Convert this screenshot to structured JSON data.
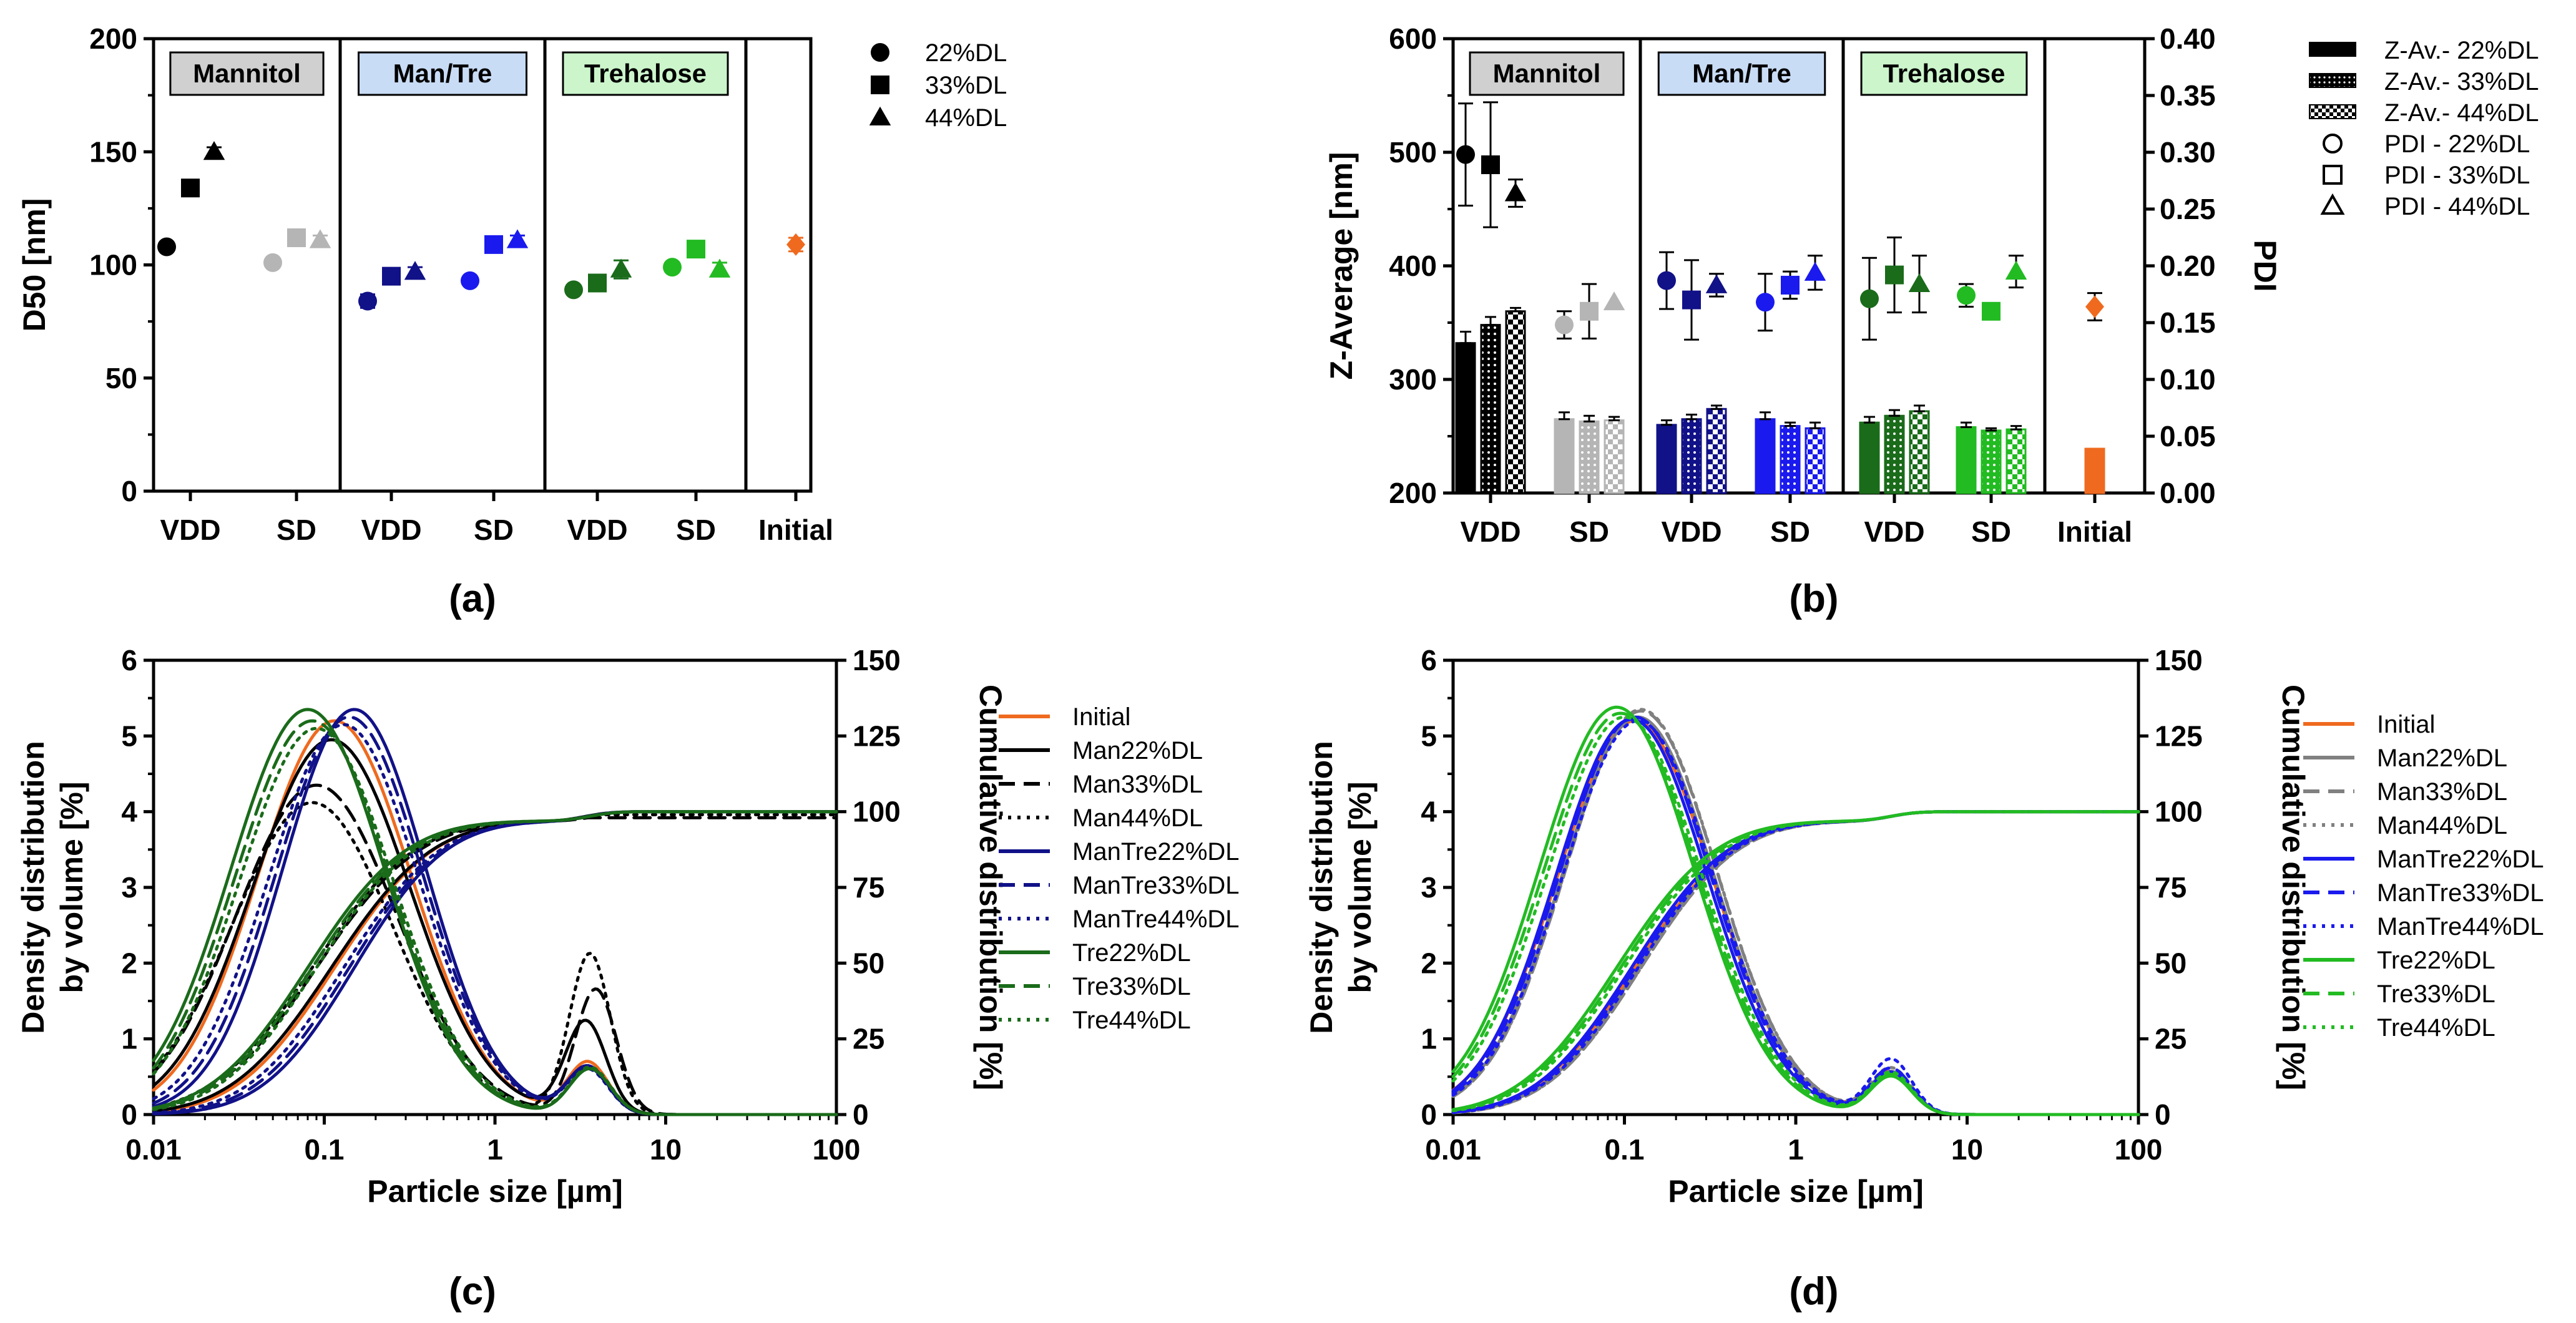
{
  "colors": {
    "black": "#000000",
    "grey": "#b5b5b5",
    "grey_line": "#808080",
    "navy": "#111188",
    "blue": "#1a1aee",
    "dkgreen": "#1a6b1a",
    "ltgreen": "#22bb22",
    "orange": "#ef6a1f",
    "box_mannitol": "#d0d0d0",
    "box_mantre": "#c9dcf5",
    "box_trehalose": "#ccf5cc"
  },
  "panel_labels": [
    "(a)",
    "(b)",
    "(c)",
    "(d)"
  ],
  "chart_data": [
    {
      "id": "a",
      "type": "scatter",
      "panel_label": "(a)",
      "ylabel": "D50 [nm]",
      "ylim": [
        0,
        200
      ],
      "yticks": [
        0,
        50,
        100,
        150,
        200
      ],
      "xtick_labels": [
        "VDD",
        "SD",
        "VDD",
        "SD",
        "VDD",
        "SD",
        "Initial"
      ],
      "groups": [
        {
          "name": "Mannitol",
          "box_color": "#d0d0d0"
        },
        {
          "name": "Man/Tre",
          "box_color": "#c9dcf5"
        },
        {
          "name": "Trehalose",
          "box_color": "#ccf5cc"
        }
      ],
      "legend": [
        "22%DL",
        "33%DL",
        "44%DL"
      ],
      "points": [
        {
          "slot": 0,
          "series": "22%DL",
          "marker": "circle",
          "color": "#000000",
          "value": 108,
          "err": 0
        },
        {
          "slot": 0,
          "series": "33%DL",
          "marker": "square",
          "color": "#000000",
          "value": 134,
          "err": 0
        },
        {
          "slot": 0,
          "series": "44%DL",
          "marker": "triangle",
          "color": "#000000",
          "value": 150,
          "err": 2
        },
        {
          "slot": 1,
          "series": "22%DL",
          "marker": "circle",
          "color": "#b5b5b5",
          "value": 101,
          "err": 2
        },
        {
          "slot": 1,
          "series": "33%DL",
          "marker": "square",
          "color": "#b5b5b5",
          "value": 112,
          "err": 0
        },
        {
          "slot": 1,
          "series": "44%DL",
          "marker": "triangle",
          "color": "#b5b5b5",
          "value": 111,
          "err": 2
        },
        {
          "slot": 2,
          "series": "22%DL",
          "marker": "circle",
          "color": "#111188",
          "value": 84,
          "err": 3
        },
        {
          "slot": 2,
          "series": "33%DL",
          "marker": "square",
          "color": "#111188",
          "value": 95,
          "err": 0
        },
        {
          "slot": 2,
          "series": "44%DL",
          "marker": "triangle",
          "color": "#111188",
          "value": 97,
          "err": 2
        },
        {
          "slot": 3,
          "series": "22%DL",
          "marker": "circle",
          "color": "#1a1aee",
          "value": 93,
          "err": 0
        },
        {
          "slot": 3,
          "series": "33%DL",
          "marker": "square",
          "color": "#1a1aee",
          "value": 109,
          "err": 0
        },
        {
          "slot": 3,
          "series": "44%DL",
          "marker": "triangle",
          "color": "#1a1aee",
          "value": 111,
          "err": 2
        },
        {
          "slot": 4,
          "series": "22%DL",
          "marker": "circle",
          "color": "#1a6b1a",
          "value": 89,
          "err": 0
        },
        {
          "slot": 4,
          "series": "33%DL",
          "marker": "square",
          "color": "#1a6b1a",
          "value": 92,
          "err": 0
        },
        {
          "slot": 4,
          "series": "44%DL",
          "marker": "triangle",
          "color": "#1a6b1a",
          "value": 98,
          "err": 4
        },
        {
          "slot": 5,
          "series": "22%DL",
          "marker": "circle",
          "color": "#22bb22",
          "value": 99,
          "err": 0
        },
        {
          "slot": 5,
          "series": "33%DL",
          "marker": "square",
          "color": "#22bb22",
          "value": 107,
          "err": 0
        },
        {
          "slot": 5,
          "series": "44%DL",
          "marker": "triangle",
          "color": "#22bb22",
          "value": 98,
          "err": 3
        },
        {
          "slot": 6,
          "series": "Initial",
          "marker": "diamond",
          "color": "#ef6a1f",
          "value": 109,
          "err": 3
        }
      ]
    },
    {
      "id": "b",
      "type": "bar",
      "panel_label": "(b)",
      "ylabel": "Z-Average [nm]",
      "ylabel_right": "PDI",
      "ylim": [
        200,
        600
      ],
      "yticks": [
        200,
        300,
        400,
        500,
        600
      ],
      "ylim_right": [
        0,
        0.4
      ],
      "yticks_right": [
        "0.00",
        "0.05",
        "0.10",
        "0.15",
        "0.20",
        "0.25",
        "0.30",
        "0.35",
        "0.40"
      ],
      "xtick_labels": [
        "VDD",
        "SD",
        "VDD",
        "SD",
        "VDD",
        "SD",
        "Initial"
      ],
      "groups": [
        {
          "name": "Mannitol",
          "box_color": "#d0d0d0"
        },
        {
          "name": "Man/Tre",
          "box_color": "#c9dcf5"
        },
        {
          "name": "Trehalose",
          "box_color": "#ccf5cc"
        }
      ],
      "legend": [
        "Z-Av.- 22%DL",
        "Z-Av.- 33%DL",
        "Z-Av.- 44%DL",
        "PDI - 22%DL",
        "PDI - 33%DL",
        "PDI - 44%DL"
      ],
      "slot_colors": [
        "#000000",
        "#b5b5b5",
        "#111188",
        "#1a1aee",
        "#1a6b1a",
        "#22bb22",
        "#ef6a1f"
      ],
      "zavg": [
        [
          332,
          348,
          360
        ],
        [
          265,
          263,
          264
        ],
        [
          260,
          265,
          274
        ],
        [
          265,
          259,
          257
        ],
        [
          262,
          268,
          272
        ],
        [
          258,
          255,
          256
        ],
        [
          239
        ]
      ],
      "zavg_err": [
        [
          10,
          7,
          3
        ],
        [
          6,
          5,
          3
        ],
        [
          4,
          4,
          3
        ],
        [
          6,
          3,
          5
        ],
        [
          5,
          5,
          5
        ],
        [
          4,
          2,
          3
        ],
        [
          0
        ]
      ],
      "pdi": [
        [
          0.298,
          0.289,
          0.264
        ],
        [
          0.148,
          0.16,
          0.168
        ],
        [
          0.187,
          0.17,
          0.183
        ],
        [
          0.168,
          0.183,
          0.194
        ],
        [
          0.171,
          0.192,
          0.184
        ],
        [
          0.174,
          0.16,
          0.195
        ],
        [
          0.164
        ]
      ],
      "pdi_err": [
        [
          0.045,
          0.055,
          0.012
        ],
        [
          0.012,
          0.024,
          0.0
        ],
        [
          0.025,
          0.035,
          0.01
        ],
        [
          0.025,
          0.012,
          0.015
        ],
        [
          0.036,
          0.033,
          0.025
        ],
        [
          0.01,
          0.0,
          0.014
        ],
        [
          0.012
        ]
      ]
    },
    {
      "id": "c",
      "type": "line",
      "panel_label": "(c)",
      "xlabel": "Particle size [µm]",
      "xscale": "log",
      "xlim": [
        0.01,
        100
      ],
      "xtick_labels": [
        "0.01",
        "0.1",
        "1",
        "10",
        "100"
      ],
      "ylabel_lines": [
        "Density  distribution",
        "by volume [%]"
      ],
      "ylim": [
        0,
        6
      ],
      "yticks": [
        0,
        1,
        2,
        3,
        4,
        5,
        6
      ],
      "ylabel_right": "Cumulative distribution [%]",
      "ylim_right": [
        0,
        150
      ],
      "yticks_right": [
        0,
        25,
        50,
        75,
        100,
        125,
        150
      ],
      "series": [
        {
          "name": "Initial",
          "color": "#ef6a1f",
          "dash": "solid",
          "peak_x": 0.115,
          "peak_y": 5.2,
          "width": 0.45,
          "second_peak_x": 3.5,
          "second_peak_y": 0.68,
          "final_cum": 100
        },
        {
          "name": "Man22%DL",
          "color": "#000000",
          "dash": "solid",
          "peak_x": 0.11,
          "peak_y": 4.95,
          "width": 0.46,
          "second_peak_x": 3.4,
          "second_peak_y": 1.22,
          "final_cum": 100
        },
        {
          "name": "Man33%DL",
          "color": "#000000",
          "dash": "dashed",
          "peak_x": 0.09,
          "peak_y": 4.35,
          "width": 0.47,
          "second_peak_x": 3.9,
          "second_peak_y": 1.65,
          "final_cum": 98
        },
        {
          "name": "Man44%DL",
          "color": "#000000",
          "dash": "dotted",
          "peak_x": 0.085,
          "peak_y": 4.12,
          "width": 0.47,
          "second_peak_x": 3.6,
          "second_peak_y": 2.12,
          "final_cum": 99
        },
        {
          "name": "ManTre22%DL",
          "color": "#111188",
          "dash": "solid",
          "peak_x": 0.15,
          "peak_y": 5.35,
          "width": 0.42,
          "second_peak_x": 3.5,
          "second_peak_y": 0.62,
          "final_cum": 100
        },
        {
          "name": "ManTre33%DL",
          "color": "#111188",
          "dash": "dashed",
          "peak_x": 0.14,
          "peak_y": 5.25,
          "width": 0.43,
          "second_peak_x": 3.5,
          "second_peak_y": 0.6,
          "final_cum": 100
        },
        {
          "name": "ManTre44%DL",
          "color": "#111188",
          "dash": "dotted",
          "peak_x": 0.13,
          "peak_y": 5.15,
          "width": 0.44,
          "second_peak_x": 3.5,
          "second_peak_y": 0.58,
          "final_cum": 100
        },
        {
          "name": "Tre22%DL",
          "color": "#1a6b1a",
          "dash": "solid",
          "peak_x": 0.08,
          "peak_y": 5.35,
          "width": 0.45,
          "second_peak_x": 3.6,
          "second_peak_y": 0.6,
          "final_cum": 100
        },
        {
          "name": "Tre33%DL",
          "color": "#1a6b1a",
          "dash": "dashed",
          "peak_x": 0.085,
          "peak_y": 5.2,
          "width": 0.45,
          "second_peak_x": 3.6,
          "second_peak_y": 0.6,
          "final_cum": 100
        },
        {
          "name": "Tre44%DL",
          "color": "#1a6b1a",
          "dash": "dotted",
          "peak_x": 0.09,
          "peak_y": 5.1,
          "width": 0.45,
          "second_peak_x": 3.6,
          "second_peak_y": 0.62,
          "final_cum": 100
        }
      ]
    },
    {
      "id": "d",
      "type": "line",
      "panel_label": "(d)",
      "xlabel": "Particle size [µm]",
      "xscale": "log",
      "xlim": [
        0.01,
        100
      ],
      "xtick_labels": [
        "0.01",
        "0.1",
        "1",
        "10",
        "100"
      ],
      "ylabel_lines": [
        "Density  distribution",
        "by volume [%]"
      ],
      "ylim": [
        0,
        6
      ],
      "yticks": [
        0,
        1,
        2,
        3,
        4,
        5,
        6
      ],
      "ylabel_right": "Cumulative distribution [%]",
      "ylim_right": [
        0,
        150
      ],
      "yticks_right": [
        0,
        25,
        50,
        75,
        100,
        125,
        150
      ],
      "series": [
        {
          "name": "Initial",
          "color": "#ef6a1f",
          "dash": "solid",
          "peak_x": 0.115,
          "peak_y": 5.2,
          "width": 0.45,
          "second_peak_x": 3.6,
          "second_peak_y": 0.55,
          "final_cum": 100
        },
        {
          "name": "Man22%DL",
          "color": "#808080",
          "dash": "solid",
          "peak_x": 0.12,
          "peak_y": 5.25,
          "width": 0.44,
          "second_peak_x": 3.6,
          "second_peak_y": 0.5,
          "final_cum": 100
        },
        {
          "name": "Man33%DL",
          "color": "#808080",
          "dash": "dashed",
          "peak_x": 0.125,
          "peak_y": 5.33,
          "width": 0.44,
          "second_peak_x": 3.6,
          "second_peak_y": 0.55,
          "final_cum": 100
        },
        {
          "name": "Man44%DL",
          "color": "#808080",
          "dash": "dotted",
          "peak_x": 0.125,
          "peak_y": 5.35,
          "width": 0.44,
          "second_peak_x": 3.6,
          "second_peak_y": 0.6,
          "final_cum": 100
        },
        {
          "name": "ManTre22%DL",
          "color": "#1a1aee",
          "dash": "solid",
          "peak_x": 0.11,
          "peak_y": 5.22,
          "width": 0.44,
          "second_peak_x": 3.6,
          "second_peak_y": 0.55,
          "final_cum": 100
        },
        {
          "name": "ManTre33%DL",
          "color": "#1a1aee",
          "dash": "dashed",
          "peak_x": 0.115,
          "peak_y": 5.25,
          "width": 0.44,
          "second_peak_x": 3.6,
          "second_peak_y": 0.6,
          "final_cum": 100
        },
        {
          "name": "ManTre44%DL",
          "color": "#1a1aee",
          "dash": "dotted",
          "peak_x": 0.12,
          "peak_y": 5.2,
          "width": 0.44,
          "second_peak_x": 3.6,
          "second_peak_y": 0.72,
          "final_cum": 100
        },
        {
          "name": "Tre22%DL",
          "color": "#22bb22",
          "dash": "solid",
          "peak_x": 0.09,
          "peak_y": 5.38,
          "width": 0.45,
          "second_peak_x": 3.6,
          "second_peak_y": 0.5,
          "final_cum": 100
        },
        {
          "name": "Tre33%DL",
          "color": "#22bb22",
          "dash": "dashed",
          "peak_x": 0.095,
          "peak_y": 5.3,
          "width": 0.45,
          "second_peak_x": 3.6,
          "second_peak_y": 0.52,
          "final_cum": 100
        },
        {
          "name": "Tre44%DL",
          "color": "#22bb22",
          "dash": "dotted",
          "peak_x": 0.1,
          "peak_y": 5.25,
          "width": 0.45,
          "second_peak_x": 3.6,
          "second_peak_y": 0.55,
          "final_cum": 100
        }
      ]
    }
  ]
}
